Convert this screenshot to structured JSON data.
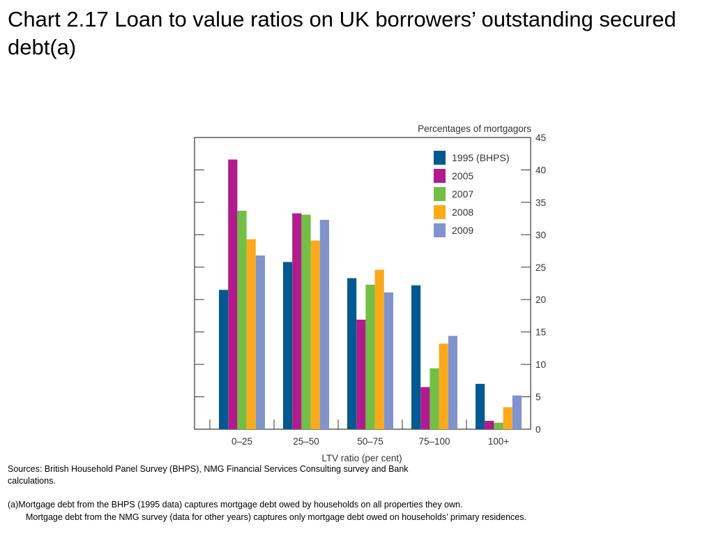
{
  "title": "Chart 2.17  Loan to value ratios on UK borrowers’ outstanding secured debt(a)",
  "sources": "Sources:  British Household Panel Survey (BHPS), NMG Financial Services Consulting survey and Bank calculations.",
  "footnote_line1": "(a)Mortgage debt from the BHPS (1995 data) captures mortgage debt owed by households on all properties they own.",
  "footnote_line2": "Mortgage debt from the NMG survey (data for other years) captures only mortgage debt owed on households’ primary residences.",
  "chart_data": {
    "type": "bar",
    "ylabel": "Percentages of mortgagors",
    "xlabel": "LTV ratio (per cent)",
    "ylim": [
      0,
      45
    ],
    "yticks": [
      0,
      5,
      10,
      15,
      20,
      25,
      30,
      35,
      40,
      45
    ],
    "y_axis_side": "right",
    "legend_position": "top-right",
    "categories": [
      "0–25",
      "25–50",
      "50–75",
      "75–100",
      "100+"
    ],
    "series": [
      {
        "name": "1995 (BHPS)",
        "color": "#005a91",
        "values": [
          21.5,
          25.8,
          23.3,
          22.2,
          7.0
        ]
      },
      {
        "name": "2005",
        "color": "#b01c8c",
        "values": [
          41.6,
          33.3,
          16.9,
          6.5,
          1.3
        ]
      },
      {
        "name": "2007",
        "color": "#72bf44",
        "values": [
          33.7,
          33.1,
          22.3,
          9.4,
          1.0
        ]
      },
      {
        "name": "2008",
        "color": "#fbaa1c",
        "values": [
          29.3,
          29.1,
          24.6,
          13.2,
          3.4
        ]
      },
      {
        "name": "2009",
        "color": "#8093cc",
        "values": [
          26.8,
          32.3,
          21.1,
          14.4,
          5.2
        ]
      }
    ]
  }
}
